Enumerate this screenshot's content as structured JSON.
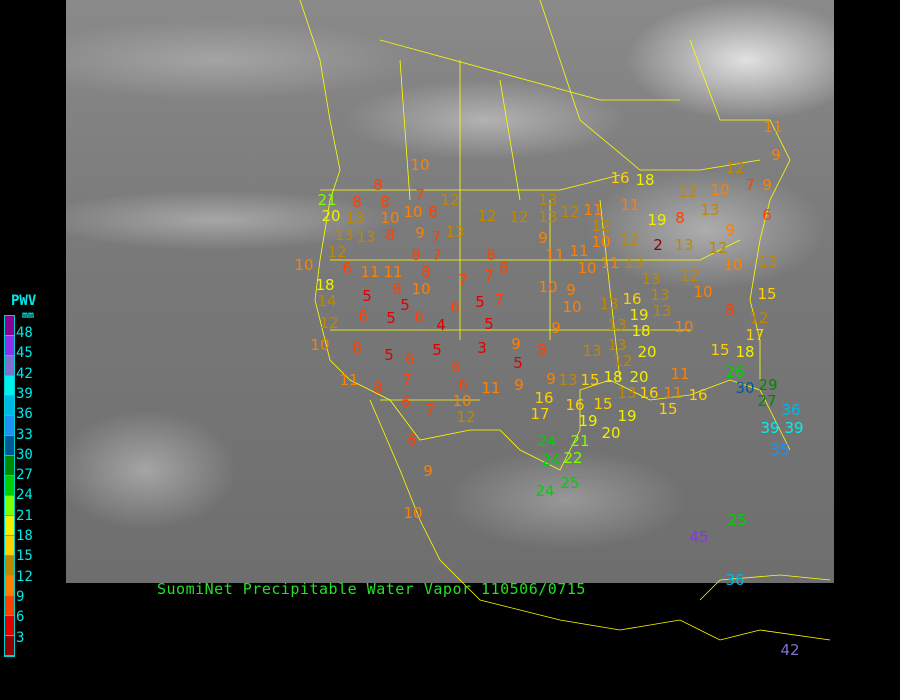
{
  "title": "SuomiNet Precipitable Water Vapor 110506/0715",
  "legend": {
    "title": "PWV",
    "unit": "mm",
    "ticks": [
      "48",
      "45",
      "42",
      "39",
      "36",
      "33",
      "30",
      "27",
      "24",
      "21",
      "18",
      "15",
      "12",
      "9",
      "6",
      "3"
    ],
    "colors": [
      "#8a0090",
      "#8f30f0",
      "#8070d0",
      "#00f0f0",
      "#00b8e8",
      "#2090f8",
      "#005898",
      "#008800",
      "#00d000",
      "#80ff00",
      "#f0f000",
      "#ffd000",
      "#c08800",
      "#ff8000",
      "#ff4000",
      "#e00000",
      "#900000"
    ]
  },
  "stations": [
    10,
    8,
    7,
    12,
    8,
    8,
    10,
    8,
    10,
    21,
    20,
    13,
    13,
    13,
    8,
    9,
    13,
    12,
    12,
    13,
    13,
    9,
    12,
    11,
    12,
    10,
    16,
    18,
    12,
    10,
    12,
    7,
    9,
    6,
    11,
    9,
    11,
    19,
    8,
    13,
    9,
    12,
    2,
    13,
    12,
    10,
    13,
    12,
    10,
    6,
    11,
    11,
    8,
    7,
    7,
    8,
    7,
    8,
    7,
    6,
    18,
    14,
    5,
    8,
    5,
    10,
    6,
    5,
    7,
    10,
    9,
    11,
    10,
    11,
    11,
    13,
    13,
    13,
    12,
    10,
    15,
    12,
    6,
    5,
    6,
    4,
    5,
    10,
    8,
    5,
    6,
    5,
    6,
    3,
    9,
    5,
    8,
    9,
    10,
    13,
    16,
    13,
    19,
    13,
    10,
    13,
    18,
    13,
    12,
    20,
    8,
    12,
    15,
    18,
    17,
    18,
    20,
    15,
    13,
    9,
    9,
    11,
    6,
    7,
    11,
    8,
    6,
    7,
    10,
    12,
    16,
    17,
    16,
    19,
    15,
    20,
    19,
    13,
    16,
    11,
    15,
    11,
    16,
    26,
    30,
    29,
    27,
    36,
    39,
    39,
    35,
    24,
    21,
    24,
    22,
    24,
    25,
    6,
    9,
    10,
    25,
    45,
    36,
    42
  ]
}
